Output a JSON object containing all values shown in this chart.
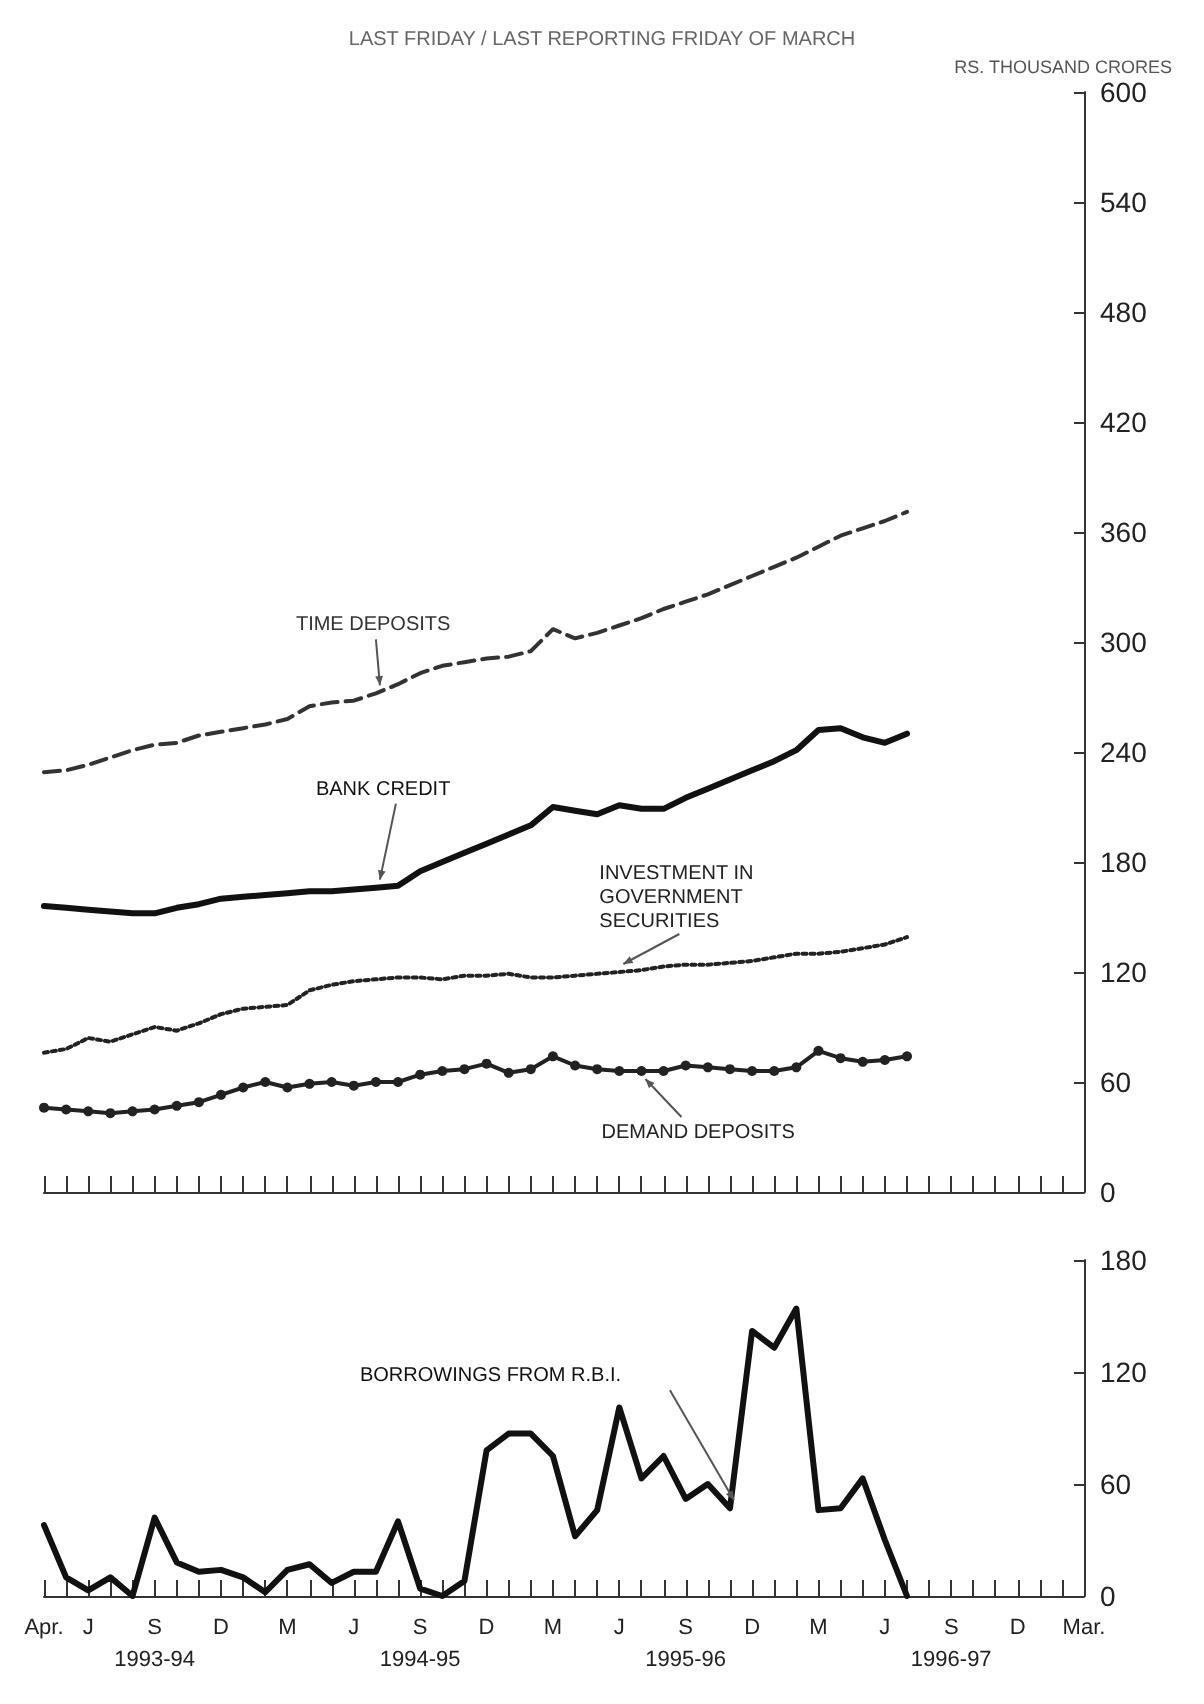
{
  "chart_data": [
    {
      "type": "line",
      "subtitle": "LAST FRIDAY / LAST REPORTING FRIDAY OF MARCH",
      "ylabel": "RS. THOUSAND CRORES",
      "tick_labels": "y",
      "grid": false,
      "ylim": [
        0,
        600
      ],
      "yticks": [
        0,
        60,
        120,
        180,
        240,
        300,
        360,
        420,
        480,
        540,
        600
      ],
      "categories": [
        "Apr.",
        null,
        "J",
        null,
        null,
        "S\n1993-94",
        null,
        null,
        "D",
        null,
        null,
        "M",
        null,
        null,
        "J",
        null,
        null,
        "S\n1994-95",
        null,
        null,
        "D",
        null,
        null,
        "M",
        null,
        null,
        "J",
        null,
        null,
        "S\n1995-96",
        null,
        null,
        "D",
        null,
        null,
        "M",
        null,
        null,
        "J",
        null,
        null,
        "S\n1996-97",
        null,
        null,
        "D",
        null,
        null,
        "Mar."
      ],
      "series": [
        {
          "name": "TIME DEPOSITS",
          "color": "#333333",
          "line_style": "dashed",
          "marker": "none",
          "values": [
            229,
            230,
            233,
            237,
            241,
            244,
            245,
            249,
            251,
            253,
            255,
            258,
            265,
            267,
            268,
            272,
            277,
            283,
            287,
            289,
            291,
            292,
            295,
            307,
            302,
            305,
            309,
            313,
            318,
            322,
            326,
            331,
            336,
            341,
            346,
            352,
            358,
            362,
            366,
            371,
            null,
            null,
            null,
            null,
            null,
            null,
            null,
            null
          ]
        },
        {
          "name": "BANK CREDIT",
          "color": "#111111",
          "line_style": "solid",
          "marker": "none",
          "values": [
            156,
            155,
            154,
            153,
            152,
            152,
            155,
            157,
            160,
            161,
            162,
            163,
            164,
            164,
            165,
            166,
            167,
            175,
            180,
            185,
            190,
            195,
            200,
            210,
            208,
            206,
            211,
            209,
            209,
            215,
            220,
            225,
            230,
            235,
            241,
            252,
            253,
            248,
            245,
            250,
            null,
            null,
            null,
            null,
            null,
            null,
            null,
            null
          ]
        },
        {
          "name": "INVESTMENT IN GOVERNMENT SECURITIES",
          "color": "#222222",
          "line_style": "dotted",
          "marker": "none",
          "values": [
            76,
            78,
            84,
            82,
            86,
            90,
            88,
            92,
            97,
            100,
            101,
            102,
            110,
            113,
            115,
            116,
            117,
            117,
            116,
            118,
            118,
            119,
            117,
            117,
            118,
            119,
            120,
            121,
            123,
            124,
            124,
            125,
            126,
            128,
            130,
            130,
            131,
            133,
            135,
            139,
            null,
            null,
            null,
            null,
            null,
            null,
            null,
            null
          ]
        },
        {
          "name": "DEMAND DEPOSITS",
          "color": "#222222",
          "line_style": "solid",
          "marker": "circle",
          "values": [
            46,
            45,
            44,
            43,
            44,
            45,
            47,
            49,
            53,
            57,
            60,
            57,
            59,
            60,
            58,
            60,
            60,
            64,
            66,
            67,
            70,
            65,
            67,
            74,
            69,
            67,
            66,
            66,
            66,
            69,
            68,
            67,
            66,
            66,
            68,
            77,
            73,
            71,
            72,
            74,
            null,
            null,
            null,
            null,
            null,
            null,
            null,
            null
          ]
        }
      ]
    },
    {
      "type": "line",
      "grid": false,
      "ylim": [
        0,
        180
      ],
      "yticks": [
        0,
        60,
        120,
        180
      ],
      "categories": [
        "Apr.",
        null,
        "J",
        null,
        null,
        "S\n1993-94",
        null,
        null,
        "D",
        null,
        null,
        "M",
        null,
        null,
        "J",
        null,
        null,
        "S\n1994-95",
        null,
        null,
        "D",
        null,
        null,
        "M",
        null,
        null,
        "J",
        null,
        null,
        "S\n1995-96",
        null,
        null,
        "D",
        null,
        null,
        "M",
        null,
        null,
        "J",
        null,
        null,
        "S\n1996-97",
        null,
        null,
        "D",
        null,
        null,
        "Mar."
      ],
      "series": [
        {
          "name": "BORROWINGS FROM R.B.I.",
          "color": "#111111",
          "line_style": "solid",
          "marker": "none",
          "values": [
            38,
            10,
            3,
            10,
            0,
            42,
            18,
            13,
            14,
            10,
            2,
            14,
            17,
            7,
            13,
            13,
            40,
            4,
            0,
            8,
            78,
            87,
            87,
            75,
            32,
            46,
            101,
            63,
            75,
            52,
            60,
            47,
            142,
            133,
            154,
            46,
            47,
            63,
            30,
            0,
            null,
            null,
            null,
            null,
            null,
            null,
            null,
            null
          ]
        }
      ]
    }
  ]
}
